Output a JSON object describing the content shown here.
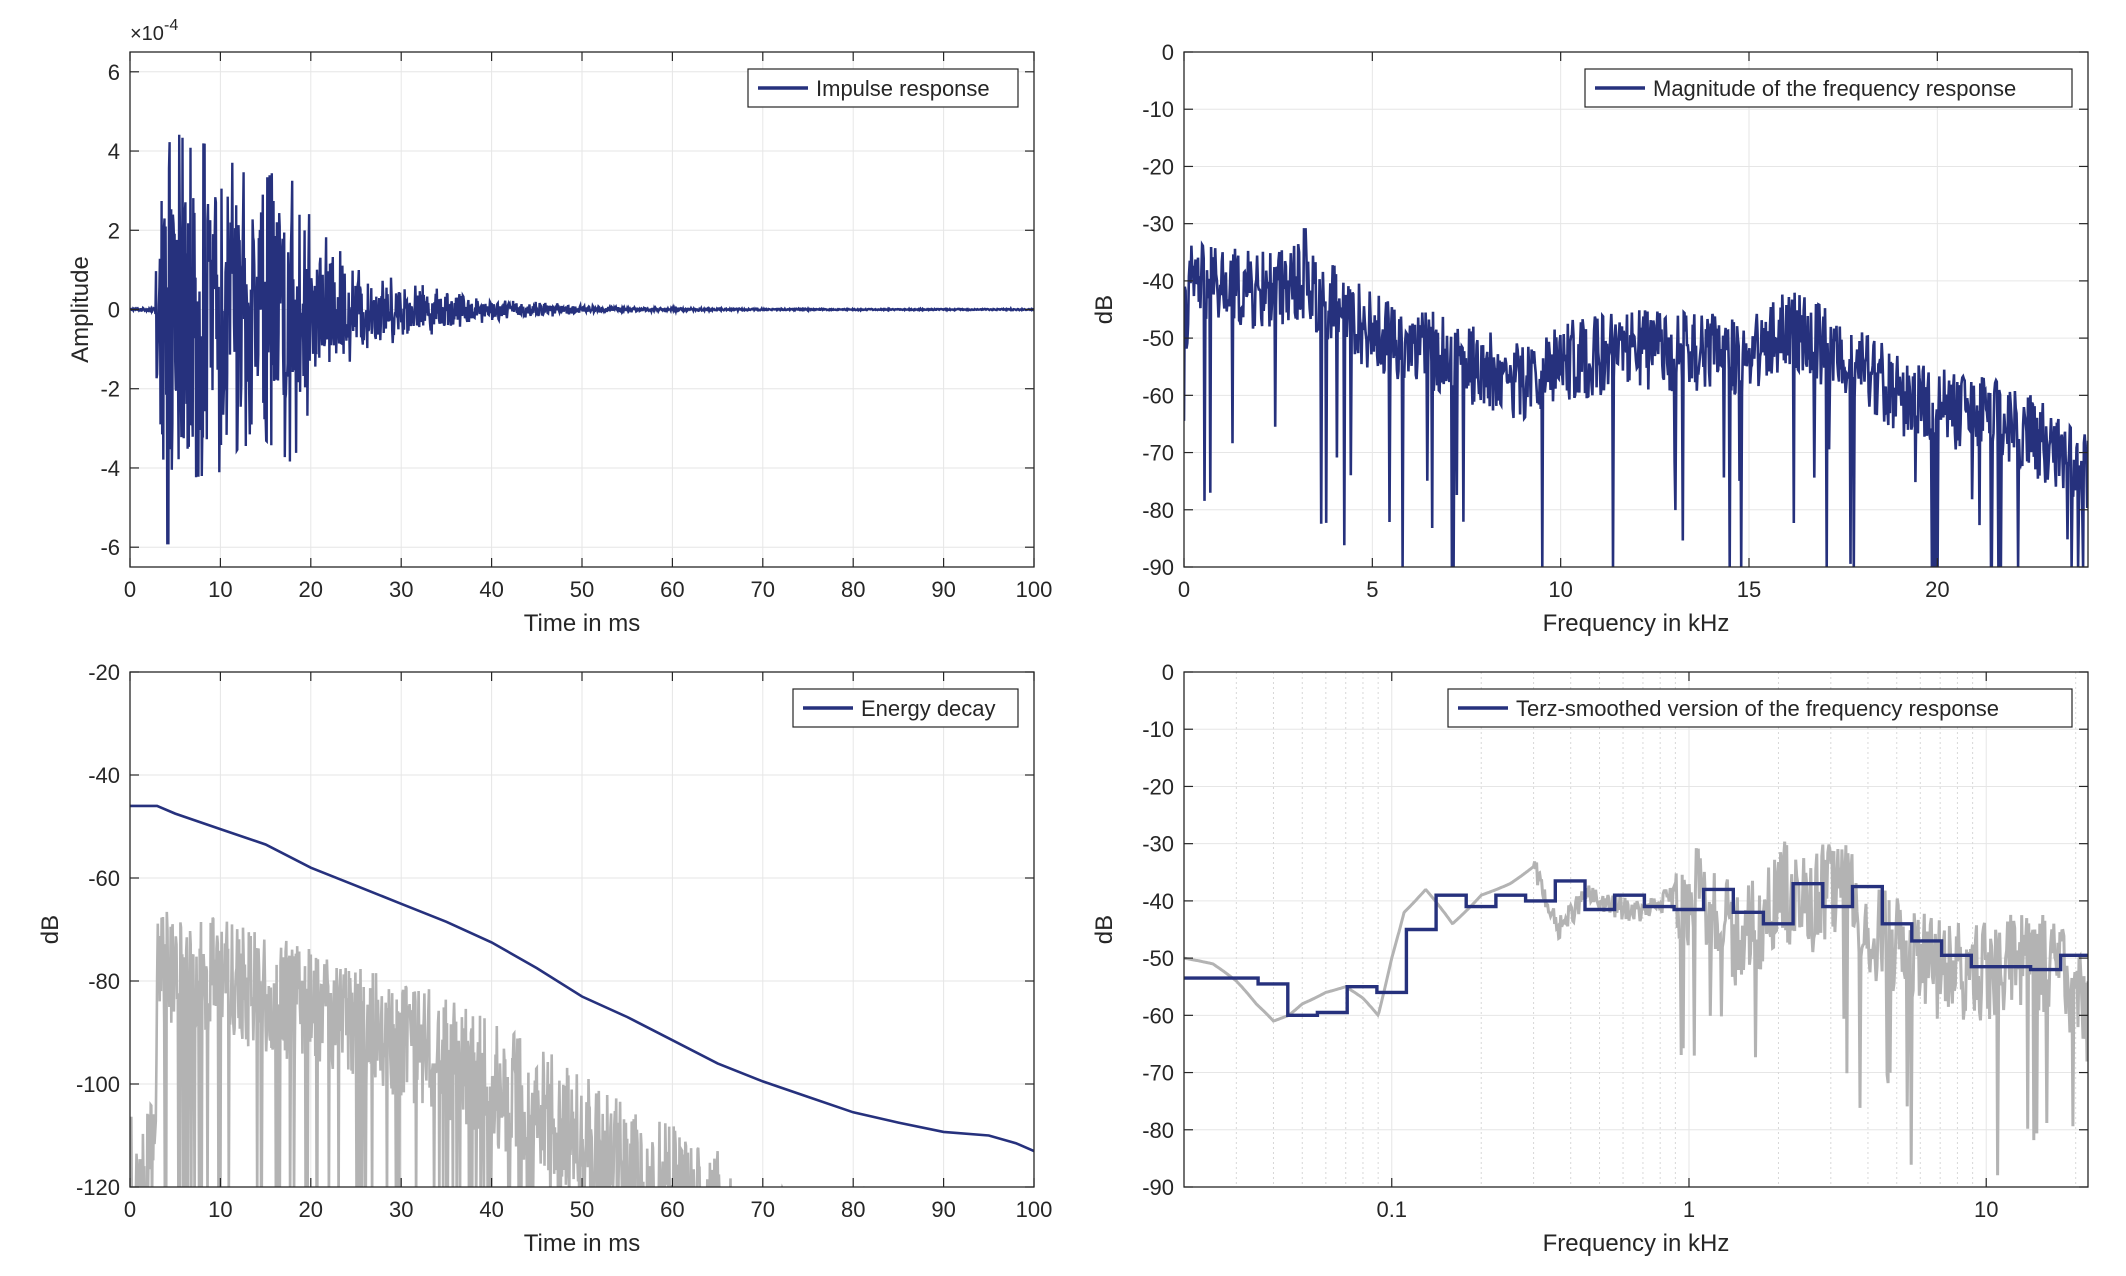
{
  "figure": {
    "colors": {
      "series": "#26317d",
      "gray": "#b3b3b3",
      "grid": "#e6e6e6",
      "axis": "#262626"
    }
  },
  "chart_data": [
    {
      "id": "impulse",
      "type": "line",
      "xlabel": "Time in ms",
      "ylabel": "Amplitude",
      "exponent_label": "×10",
      "exponent_power": "-4",
      "xlim": [
        0,
        100
      ],
      "ylim": [
        -6.5,
        6.5
      ],
      "xticks": [
        0,
        10,
        20,
        30,
        40,
        50,
        60,
        70,
        80,
        90,
        100
      ],
      "yticks": [
        -6,
        -4,
        -2,
        0,
        2,
        4,
        6
      ],
      "grid": true,
      "legend": {
        "position": "top-right",
        "entries": [
          "Impulse response"
        ]
      },
      "series": [
        {
          "name": "Impulse response",
          "envelope_x": [
            0,
            2.8,
            3,
            3.2,
            3.5,
            4,
            5,
            6,
            8,
            10,
            12,
            15,
            18,
            20,
            25,
            30,
            35,
            40,
            45,
            50,
            55,
            60,
            70,
            80,
            90,
            100
          ],
          "envelope_y": [
            0.03,
            0.05,
            2.5,
            4.6,
            5.2,
            5.0,
            4.5,
            4.3,
            4.2,
            4.1,
            3.5,
            3.3,
            3.9,
            2.4,
            1.3,
            0.8,
            0.6,
            0.3,
            0.22,
            0.12,
            0.07,
            0.05,
            0.03,
            0.02,
            0.02,
            0.02
          ],
          "min_value": -5.9
        }
      ]
    },
    {
      "id": "magnitude",
      "type": "line",
      "xlabel": "Frequency in kHz",
      "ylabel": "dB",
      "xlim": [
        0,
        24
      ],
      "ylim": [
        -90,
        0
      ],
      "xticks": [
        0,
        5,
        10,
        15,
        20
      ],
      "yticks": [
        0,
        -10,
        -20,
        -30,
        -40,
        -50,
        -60,
        -70,
        -80,
        -90
      ],
      "grid": true,
      "legend": {
        "position": "top-right",
        "entries": [
          "Magnitude of the frequency response"
        ]
      },
      "series": [
        {
          "name": "Magnitude of the frequency response",
          "baseline_x": [
            0,
            0.2,
            1,
            2,
            3,
            4,
            5,
            7,
            9,
            10,
            12,
            15,
            16,
            18,
            19,
            20,
            22,
            24
          ],
          "baseline_y": [
            -48,
            -40,
            -41,
            -42,
            -40,
            -44,
            -49,
            -53,
            -58,
            -54,
            -52,
            -53,
            -48,
            -55,
            -60,
            -62,
            -65,
            -73
          ],
          "peak_value": -31,
          "peak_at_khz": 3.2,
          "min_value": -90
        }
      ]
    },
    {
      "id": "energy",
      "type": "line",
      "xlabel": "Time in ms",
      "ylabel": "dB",
      "xlim": [
        0,
        100
      ],
      "ylim": [
        -120,
        -20
      ],
      "xticks": [
        0,
        10,
        20,
        30,
        40,
        50,
        60,
        70,
        80,
        90,
        100
      ],
      "yticks": [
        -20,
        -40,
        -60,
        -80,
        -100,
        -120
      ],
      "grid": true,
      "legend": {
        "position": "top-right",
        "entries": [
          "Energy decay"
        ]
      },
      "series": [
        {
          "name": "Energy decay",
          "x": [
            0,
            3,
            5,
            10,
            15,
            20,
            25,
            30,
            35,
            40,
            45,
            50,
            55,
            60,
            65,
            70,
            75,
            80,
            85,
            90,
            95,
            98,
            100
          ],
          "y": [
            -46,
            -46,
            -47.5,
            -50.5,
            -53.5,
            -58,
            -61.5,
            -65,
            -68.5,
            -72.5,
            -77.5,
            -83,
            -87,
            -91.5,
            -96,
            -99.5,
            -102.5,
            -105.5,
            -107.5,
            -109.3,
            -110,
            -111.5,
            -113
          ]
        },
        {
          "envelope_x": [
            0,
            2.9,
            3,
            5,
            10,
            15,
            20,
            25,
            30,
            35,
            40,
            45,
            50,
            55,
            60,
            65,
            67,
            100
          ],
          "envelope_y": [
            -104,
            -104,
            -65,
            -66,
            -68,
            -71,
            -72,
            -76,
            -79,
            -83,
            -88,
            -92,
            -98,
            -104,
            -108,
            -113,
            -120,
            -120
          ]
        }
      ]
    },
    {
      "id": "terz",
      "type": "line",
      "xlabel": "Frequency in kHz",
      "ylabel": "dB",
      "xscale": "log",
      "xlim": [
        0.02,
        22
      ],
      "ylim": [
        -90,
        0
      ],
      "xticks": [
        0.1,
        1,
        10
      ],
      "xticklabels": [
        "0.1",
        "1",
        "10"
      ],
      "yticks": [
        0,
        -10,
        -20,
        -30,
        -40,
        -50,
        -60,
        -70,
        -80,
        -90
      ],
      "grid": true,
      "legend": {
        "position": "top-right",
        "entries": [
          "Terz-smoothed version of the frequency response"
        ]
      },
      "series": [
        {
          "name": "Terz-smoothed version of the frequency response",
          "band_edges": [
            0.02,
            0.0355,
            0.0447,
            0.0562,
            0.0708,
            0.0891,
            0.112,
            0.141,
            0.178,
            0.224,
            0.282,
            0.355,
            0.447,
            0.562,
            0.708,
            0.891,
            1.12,
            1.41,
            1.78,
            2.24,
            2.82,
            3.55,
            4.47,
            5.62,
            7.08,
            8.91,
            11.2,
            14.1,
            17.8,
            22.4
          ],
          "band_values": [
            -53.5,
            -54.5,
            -60,
            -59.5,
            -55,
            -56,
            -45,
            -39,
            -41,
            -39,
            -40,
            -36.5,
            -41.5,
            -39,
            -41,
            -41.5,
            -38,
            -42,
            -44,
            -37,
            -41,
            -37.5,
            -44,
            -47,
            -49.5,
            -51.5,
            -51.5,
            -52,
            -49.5,
            -59.5
          ]
        },
        {
          "x": [
            0.02,
            0.025,
            0.03,
            0.035,
            0.04,
            0.045,
            0.05,
            0.06,
            0.07,
            0.08,
            0.09,
            0.1,
            0.11,
            0.13,
            0.16,
            0.2,
            0.25,
            0.3,
            0.36,
            0.45,
            0.55,
            0.7,
            0.9,
            1.2,
            1.5,
            2,
            2.5,
            3.2,
            4,
            5,
            6,
            7,
            9,
            11,
            14,
            17,
            20,
            22
          ],
          "y": [
            -50,
            -51,
            -54,
            -58,
            -61,
            -60,
            -58,
            -56,
            -55,
            -57,
            -60,
            -50,
            -42,
            -38,
            -44,
            -39,
            -37,
            -34,
            -45,
            -39,
            -41,
            -42,
            -39,
            -40,
            -48,
            -38,
            -41,
            -36,
            -45,
            -48,
            -50,
            -52,
            -53,
            -51,
            -50,
            -52,
            -55,
            -62
          ]
        }
      ]
    }
  ]
}
